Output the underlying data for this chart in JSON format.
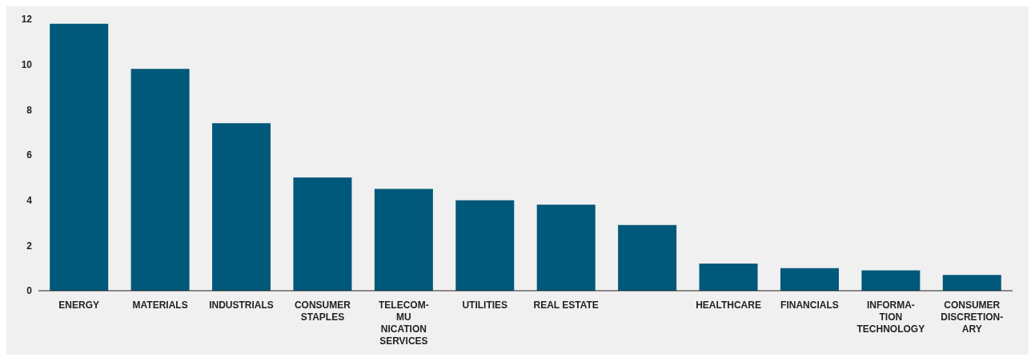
{
  "chart_data": {
    "type": "bar",
    "categories": [
      "ENERGY",
      "MATERIALS",
      "INDUSTRIALS",
      "CONSUMER\nSTAPLES",
      "TELECOM-\nMU\nNICATION\nSERVICES",
      "UTILITIES",
      "REAL ESTATE",
      null,
      "HEALTHCARE",
      "FINANCIALS",
      "INFORMA-\nTION\nTECHNOLOGY",
      "CONSUMER\nDISCRETION-\nARY"
    ],
    "values": [
      11.8,
      9.8,
      7.4,
      5.0,
      4.5,
      4.0,
      3.8,
      2.9,
      1.2,
      1.0,
      0.9,
      0.7
    ],
    "color": "#00587a",
    "ylim": [
      0,
      12
    ],
    "yticks": [
      0,
      2,
      4,
      6,
      8,
      10,
      12
    ]
  }
}
